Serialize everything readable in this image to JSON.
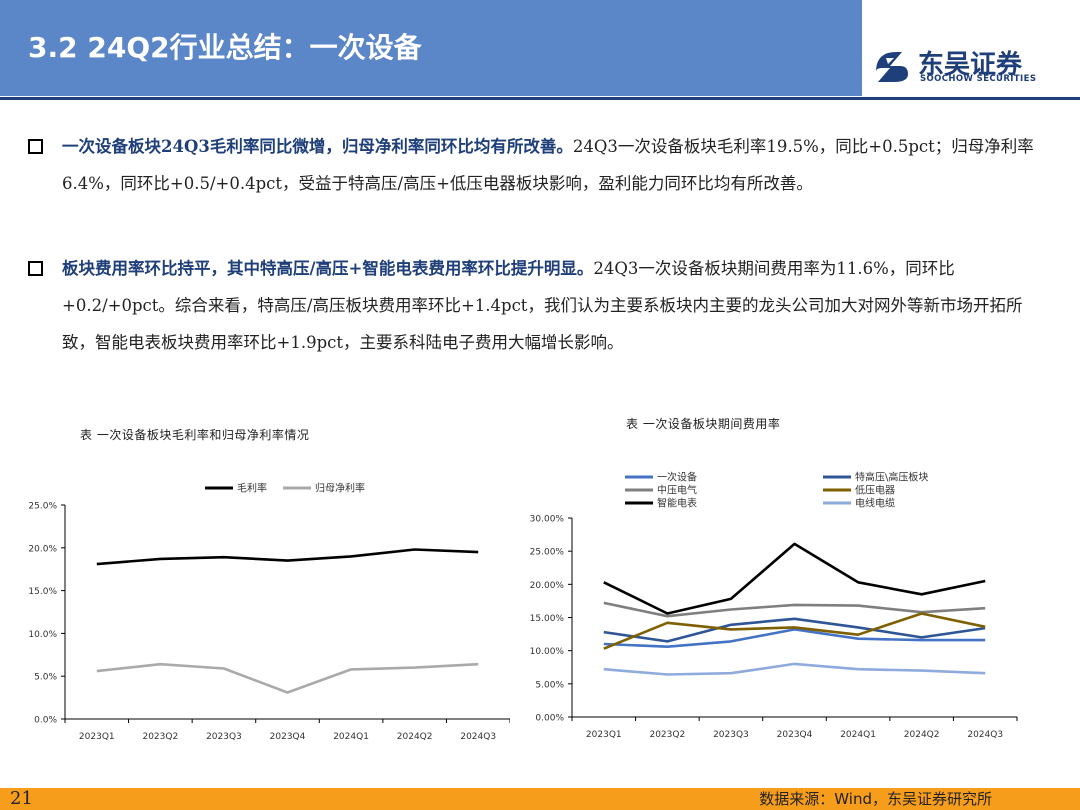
{
  "header": {
    "title": "3.2 24Q2行业总结：一次设备",
    "logo_cn": "东吴证券",
    "logo_en": "SOOCHOW SECURITIES",
    "colors": {
      "title_bar": "#5b86c7",
      "brand": "#1f3f7a",
      "footer": "#f79d1c"
    }
  },
  "bullets": [
    {
      "icon": "square-bullet-icon",
      "highlight": "一次设备板块24Q3毛利率同比微增，归母净利率同环比均有所改善。",
      "text": "24Q3一次设备板块毛利率19.5%，同比+0.5pct；归母净利率6.4%，同环比+0.5/+0.4pct，受益于特高压/高压+低压电器板块影响，盈利能力同环比均有所改善。"
    },
    {
      "icon": "square-bullet-icon",
      "highlight": "板块费用率环比持平，其中特高压/高压+智能电表费用率环比提升明显。",
      "text": "24Q3一次设备板块期间费用率为11.6%，同环比+0.2/+0pct。综合来看，特高压/高压板块费用率环比+1.4pct，我们认为主要系板块内主要的龙头公司加大对网外等新市场开拓所致，智能电表板块费用率环比+1.9pct，主要系科陆电子费用大幅增长影响。"
    }
  ],
  "chart_data": [
    {
      "type": "line",
      "caption": "表 一次设备板块毛利率和归母净利率情况",
      "categories": [
        "2023Q1",
        "2023Q2",
        "2023Q3",
        "2023Q4",
        "2024Q1",
        "2024Q2",
        "2024Q3"
      ],
      "ylim": [
        0,
        25
      ],
      "yticks": [
        "0.0%",
        "5.0%",
        "10.0%",
        "15.0%",
        "20.0%",
        "25.0%"
      ],
      "legend_position": "top",
      "grid": false,
      "series": [
        {
          "name": "毛利率",
          "color": "#000000",
          "values": [
            18.1,
            18.7,
            18.9,
            18.5,
            19.0,
            19.8,
            19.5
          ]
        },
        {
          "name": "归母净利率",
          "color": "#aaaaaa",
          "values": [
            5.6,
            6.4,
            5.9,
            3.1,
            5.8,
            6.0,
            6.4
          ]
        }
      ]
    },
    {
      "type": "line",
      "caption": "表 一次设备板块期间费用率",
      "categories": [
        "2023Q1",
        "2023Q2",
        "2023Q3",
        "2023Q4",
        "2024Q1",
        "2024Q2",
        "2024Q3"
      ],
      "ylim": [
        0,
        30
      ],
      "yticks": [
        "0.00%",
        "5.00%",
        "10.00%",
        "15.00%",
        "20.00%",
        "25.00%",
        "30.00%"
      ],
      "legend_position": "top",
      "grid": false,
      "series": [
        {
          "name": "一次设备",
          "color": "#4472c4",
          "values": [
            11.0,
            10.6,
            11.4,
            13.2,
            11.8,
            11.6,
            11.6
          ]
        },
        {
          "name": "特高压\\高压板块",
          "color": "#2f5597",
          "values": [
            12.8,
            11.4,
            13.9,
            14.8,
            13.5,
            12.0,
            13.4
          ]
        },
        {
          "name": "中压电气",
          "color": "#7f7f7f",
          "values": [
            17.2,
            15.2,
            16.2,
            16.9,
            16.8,
            15.8,
            16.4
          ]
        },
        {
          "name": "低压电器",
          "color": "#7f6000",
          "values": [
            10.3,
            14.2,
            13.2,
            13.5,
            12.4,
            15.6,
            13.6
          ]
        },
        {
          "name": "智能电表",
          "color": "#000000",
          "values": [
            20.3,
            15.6,
            17.8,
            26.1,
            20.3,
            18.5,
            20.5
          ]
        },
        {
          "name": "电线电缆",
          "color": "#8faadc",
          "values": [
            7.2,
            6.4,
            6.6,
            8.0,
            7.2,
            7.0,
            6.6
          ]
        }
      ]
    }
  ],
  "footer": {
    "page_number": "21",
    "source": "数据来源：Wind，东吴证券研究所"
  }
}
